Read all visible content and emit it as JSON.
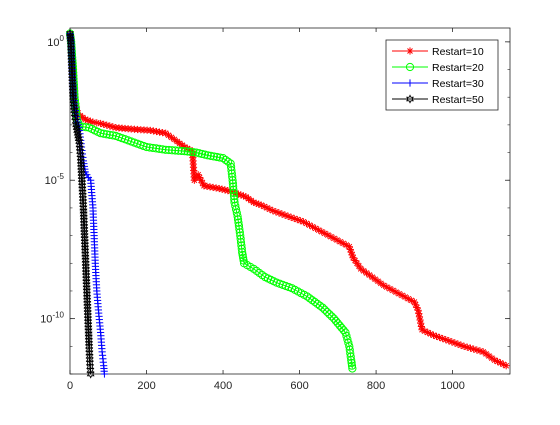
{
  "chart_data": {
    "type": "line",
    "title": "",
    "xlabel": "",
    "ylabel": "",
    "xlim": [
      0,
      1150
    ],
    "ylim_log10": [
      -12,
      0.5
    ],
    "y_scale": "log",
    "grid": false,
    "legend_position": "top-right",
    "x_ticks": [
      0,
      200,
      400,
      600,
      800,
      1000
    ],
    "x_tick_labels": [
      "0",
      "200",
      "400",
      "600",
      "800",
      "1000"
    ],
    "y_ticks_log10": [
      0,
      -5,
      -10
    ],
    "y_tick_labels": [
      {
        "base": "10",
        "exp": "0"
      },
      {
        "base": "10",
        "exp": "-5"
      },
      {
        "base": "10",
        "exp": "-10"
      }
    ],
    "series": [
      {
        "name": "Restart=10",
        "color": "#ff0000",
        "marker": "asterisk",
        "points": [
          [
            0,
            0.3
          ],
          [
            3,
            0
          ],
          [
            8,
            -1
          ],
          [
            12,
            -2
          ],
          [
            20,
            -2.6
          ],
          [
            40,
            -2.8
          ],
          [
            60,
            -2.9
          ],
          [
            80,
            -2.95
          ],
          [
            120,
            -3.1
          ],
          [
            160,
            -3.15
          ],
          [
            210,
            -3.2
          ],
          [
            250,
            -3.3
          ],
          [
            280,
            -3.6
          ],
          [
            300,
            -3.8
          ],
          [
            320,
            -3.95
          ],
          [
            325,
            -5
          ],
          [
            335,
            -4.8
          ],
          [
            350,
            -5.2
          ],
          [
            390,
            -5.3
          ],
          [
            420,
            -5.4
          ],
          [
            440,
            -5.5
          ],
          [
            460,
            -5.6
          ],
          [
            480,
            -5.8
          ],
          [
            500,
            -5.9
          ],
          [
            530,
            -6.1
          ],
          [
            570,
            -6.3
          ],
          [
            610,
            -6.5
          ],
          [
            650,
            -6.8
          ],
          [
            690,
            -7.1
          ],
          [
            730,
            -7.4
          ],
          [
            740,
            -7.8
          ],
          [
            760,
            -8.2
          ],
          [
            790,
            -8.5
          ],
          [
            820,
            -8.8
          ],
          [
            860,
            -9.1
          ],
          [
            900,
            -9.4
          ],
          [
            910,
            -9.7
          ],
          [
            920,
            -10.4
          ],
          [
            950,
            -10.6
          ],
          [
            990,
            -10.8
          ],
          [
            1030,
            -11.0
          ],
          [
            1080,
            -11.2
          ],
          [
            1110,
            -11.5
          ],
          [
            1140,
            -11.7
          ]
        ]
      },
      {
        "name": "Restart=20",
        "color": "#00ff00",
        "marker": "circle",
        "points": [
          [
            0,
            0.3
          ],
          [
            3,
            0
          ],
          [
            8,
            -1
          ],
          [
            12,
            -2
          ],
          [
            18,
            -2.8
          ],
          [
            25,
            -3.05
          ],
          [
            50,
            -3.1
          ],
          [
            80,
            -3.3
          ],
          [
            120,
            -3.4
          ],
          [
            160,
            -3.6
          ],
          [
            200,
            -3.8
          ],
          [
            250,
            -3.9
          ],
          [
            300,
            -3.95
          ],
          [
            330,
            -4.0
          ],
          [
            360,
            -4.1
          ],
          [
            400,
            -4.2
          ],
          [
            420,
            -4.4
          ],
          [
            425,
            -5.0
          ],
          [
            430,
            -5.8
          ],
          [
            438,
            -6.3
          ],
          [
            445,
            -7.0
          ],
          [
            450,
            -7.6
          ],
          [
            455,
            -8.0
          ],
          [
            480,
            -8.2
          ],
          [
            510,
            -8.5
          ],
          [
            540,
            -8.7
          ],
          [
            580,
            -8.9
          ],
          [
            620,
            -9.2
          ],
          [
            660,
            -9.6
          ],
          [
            690,
            -10.0
          ],
          [
            720,
            -10.5
          ],
          [
            730,
            -11.0
          ],
          [
            735,
            -11.5
          ],
          [
            738,
            -11.8
          ]
        ]
      },
      {
        "name": "Restart=30",
        "color": "#0000ff",
        "marker": "plus",
        "points": [
          [
            0,
            0.3
          ],
          [
            3,
            0
          ],
          [
            6,
            -1
          ],
          [
            10,
            -2
          ],
          [
            15,
            -2.6
          ],
          [
            20,
            -2.9
          ],
          [
            25,
            -3.2
          ],
          [
            30,
            -3.8
          ],
          [
            35,
            -4.3
          ],
          [
            40,
            -4.7
          ],
          [
            48,
            -4.9
          ],
          [
            54,
            -5.0
          ],
          [
            60,
            -6
          ],
          [
            63,
            -7
          ],
          [
            66,
            -8
          ],
          [
            70,
            -9
          ],
          [
            75,
            -9.8
          ],
          [
            80,
            -10.5
          ],
          [
            84,
            -11.2
          ],
          [
            88,
            -11.7
          ],
          [
            90,
            -12
          ]
        ]
      },
      {
        "name": "Restart=50",
        "color": "#000000",
        "marker": "hexagram",
        "points": [
          [
            0,
            0.3
          ],
          [
            2,
            0
          ],
          [
            5,
            -1
          ],
          [
            8,
            -2
          ],
          [
            12,
            -2.6
          ],
          [
            16,
            -3
          ],
          [
            20,
            -3.3
          ],
          [
            24,
            -3.6
          ],
          [
            28,
            -4.2
          ],
          [
            32,
            -5.2
          ],
          [
            35,
            -6
          ],
          [
            38,
            -7
          ],
          [
            41,
            -8
          ],
          [
            44,
            -9
          ],
          [
            47,
            -10
          ],
          [
            50,
            -11
          ],
          [
            52,
            -11.6
          ],
          [
            54,
            -12
          ]
        ]
      }
    ]
  }
}
